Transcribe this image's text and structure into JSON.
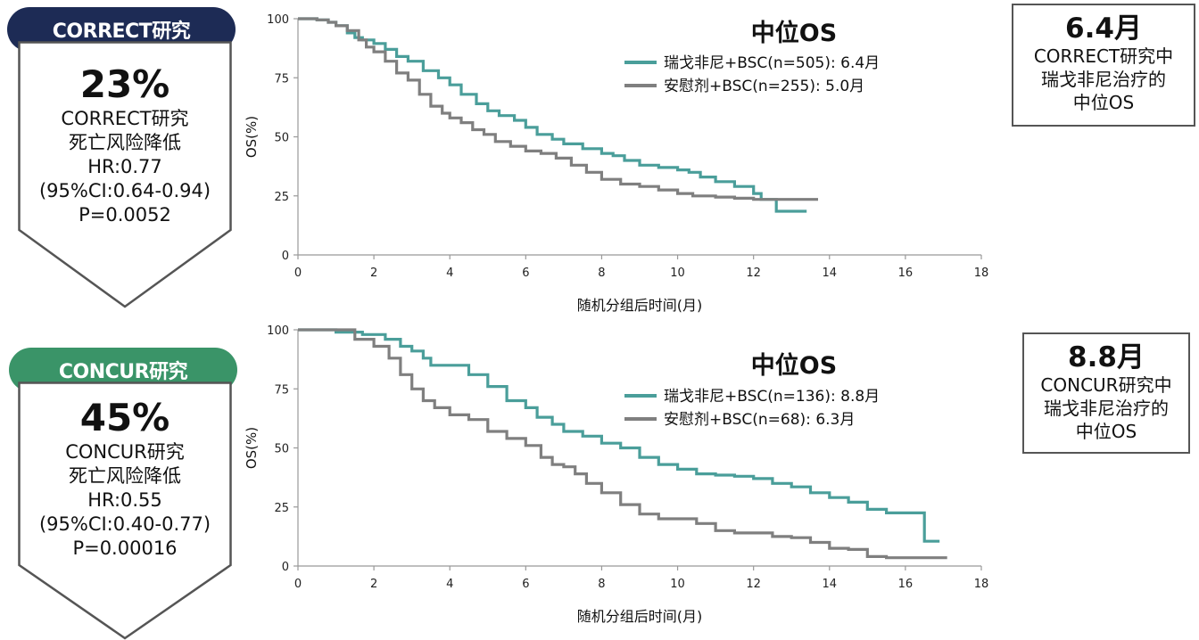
{
  "studies": [
    {
      "pill": "CORRECT研究",
      "risk_pct": "23%",
      "risk_lines": [
        "CORRECT研究",
        "死亡风险降低",
        "HR:0.77",
        "(95%CI:0.64-0.94)",
        "P=0.0052"
      ],
      "median_value": "6.4月",
      "median_lines": [
        "CORRECT研究中",
        "瑞戈非尼治疗的",
        "中位OS"
      ]
    },
    {
      "pill": "CONCUR研究",
      "risk_pct": "45%",
      "risk_lines": [
        "CONCUR研究",
        "死亡风险降低",
        "HR:0.55",
        "(95%CI:0.40-0.77)",
        "P=0.00016"
      ],
      "median_value": "8.8月",
      "median_lines": [
        "CONCUR研究中",
        "瑞戈非尼治疗的",
        "中位OS"
      ]
    }
  ],
  "colors": {
    "navy": "#1d2b55",
    "green_pill": "#3a9468",
    "regorafenib": "#4a9e9a",
    "placebo": "#7f7f7f"
  },
  "chart_data": [
    {
      "type": "line",
      "title": "中位OS",
      "xlabel": "随机分组后时间(月)",
      "ylabel": "OS(%)",
      "xlim": [
        0,
        18
      ],
      "ylim": [
        0,
        100
      ],
      "xticks": [
        0,
        2,
        4,
        6,
        8,
        10,
        12,
        14,
        16,
        18
      ],
      "yticks": [
        0,
        25,
        50,
        75,
        100
      ],
      "grid": false,
      "legend": "top-center",
      "series": [
        {
          "name": "瑞戈非尼+BSC(n=505): 6.4月",
          "x": [
            0,
            0.5,
            0.8,
            1.0,
            1.3,
            1.5,
            1.7,
            2.0,
            2.3,
            2.6,
            2.9,
            3.3,
            3.7,
            4.0,
            4.3,
            4.7,
            5.0,
            5.3,
            5.7,
            6.0,
            6.3,
            6.7,
            7.0,
            7.5,
            8.0,
            8.3,
            8.6,
            9.0,
            9.5,
            10.0,
            10.3,
            10.6,
            11.0,
            11.5,
            12.0,
            12.2,
            12.6,
            13.4
          ],
          "y": [
            100,
            99.5,
            98.5,
            97,
            94,
            92,
            91,
            89.5,
            87,
            84,
            82,
            78,
            75,
            72,
            68,
            64,
            61,
            59,
            57,
            54,
            51,
            49,
            47,
            45,
            43,
            42,
            40,
            38,
            37,
            36,
            35,
            33,
            31,
            29,
            26,
            23.5,
            18.5,
            18.5
          ]
        },
        {
          "name": "安慰剂+BSC(n=255): 5.0月",
          "x": [
            0,
            0.5,
            0.8,
            1.0,
            1.3,
            1.6,
            1.8,
            2.0,
            2.3,
            2.6,
            2.9,
            3.2,
            3.5,
            3.8,
            4.0,
            4.3,
            4.6,
            4.9,
            5.2,
            5.6,
            6.0,
            6.4,
            6.8,
            7.2,
            7.6,
            8.0,
            8.5,
            9.0,
            9.5,
            10.0,
            10.4,
            11.0,
            11.5,
            12.0,
            12.5,
            13.0,
            13.7
          ],
          "y": [
            100,
            99.5,
            98.5,
            97,
            95,
            91,
            88,
            86,
            82,
            77,
            74,
            68,
            63,
            60,
            58,
            56,
            53,
            51,
            48,
            46,
            44,
            43,
            41,
            38,
            35,
            32,
            30,
            29,
            27.5,
            26,
            25,
            24.5,
            24,
            23.5,
            23.5,
            23.5,
            23.5
          ]
        }
      ]
    },
    {
      "type": "line",
      "title": "中位OS",
      "xlabel": "随机分组后时间(月)",
      "ylabel": "OS(%)",
      "xlim": [
        0,
        18
      ],
      "ylim": [
        0,
        100
      ],
      "xticks": [
        0,
        2,
        4,
        6,
        8,
        10,
        12,
        14,
        16,
        18
      ],
      "yticks": [
        0,
        25,
        50,
        75,
        100
      ],
      "grid": false,
      "legend": "top-center",
      "series": [
        {
          "name": "瑞戈非尼+BSC(n=136): 8.8月",
          "x": [
            0,
            1.0,
            1.7,
            2.3,
            2.7,
            3.0,
            3.3,
            3.5,
            4.0,
            4.5,
            5.0,
            5.5,
            6.0,
            6.3,
            6.7,
            7.0,
            7.5,
            8.0,
            8.5,
            9.0,
            9.5,
            10.0,
            10.5,
            11.0,
            11.5,
            12.0,
            12.5,
            13.0,
            13.5,
            14.0,
            14.5,
            15.0,
            15.5,
            16.0,
            16.3,
            16.5,
            16.9
          ],
          "y": [
            100,
            99,
            98,
            96,
            93,
            91,
            88,
            85,
            85,
            81,
            76,
            70,
            67,
            63,
            60,
            57,
            55,
            52,
            50,
            46,
            43,
            41,
            39,
            38.5,
            38,
            37,
            35,
            33.5,
            31,
            29,
            27,
            24,
            22.5,
            22.5,
            22.5,
            10.5,
            10.5
          ]
        },
        {
          "name": "安慰剂+BSC(n=68): 6.3月",
          "x": [
            0,
            1.2,
            1.5,
            2.0,
            2.4,
            2.7,
            3.0,
            3.3,
            3.6,
            4.0,
            4.5,
            5.0,
            5.5,
            6.0,
            6.4,
            6.7,
            7.0,
            7.3,
            7.6,
            8.0,
            8.5,
            9.0,
            9.5,
            10.0,
            10.5,
            11.0,
            11.5,
            12.0,
            12.5,
            13.0,
            13.5,
            14.0,
            14.5,
            15.0,
            15.5,
            16.0,
            17.1
          ],
          "y": [
            100,
            100,
            96,
            93,
            88,
            81,
            75,
            70,
            67,
            64,
            62,
            57,
            54,
            51,
            46,
            43,
            42,
            39,
            35,
            31,
            26,
            22,
            20,
            20,
            18,
            15,
            14,
            14,
            12.5,
            12,
            10,
            7.5,
            7,
            4,
            3.5,
            3.5,
            3.5
          ]
        }
      ]
    }
  ]
}
